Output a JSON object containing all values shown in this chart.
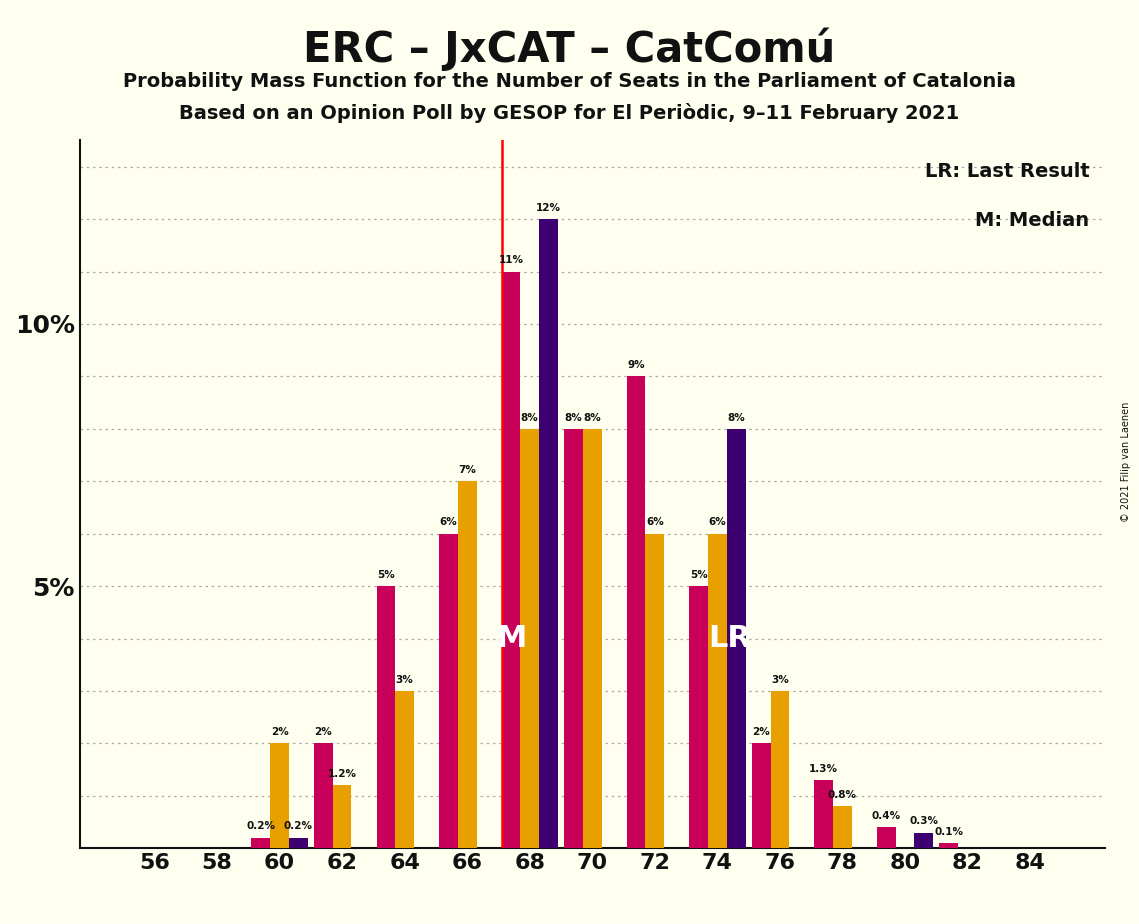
{
  "title": "ERC – JxCAT – CatComú",
  "subtitle1": "Probability Mass Function for the Number of Seats in the Parliament of Catalonia",
  "subtitle2": "Based on an Opinion Poll by GESOP for El Periòdic, 9–11 February 2021",
  "copyright": "© 2021 Filip van Laenen",
  "seats": [
    56,
    58,
    60,
    62,
    64,
    66,
    68,
    70,
    72,
    74,
    76,
    78,
    80,
    82,
    84
  ],
  "erc_color": "#C8005A",
  "jxcat_color": "#E8A000",
  "catcomu_color": "#3D0070",
  "erc_values": [
    0.0,
    0.0,
    0.2,
    2.0,
    5.0,
    6.0,
    11.0,
    8.0,
    9.0,
    5.0,
    2.0,
    1.3,
    0.4,
    0.1,
    0.0
  ],
  "jxcat_values": [
    0.0,
    0.0,
    2.0,
    1.2,
    3.0,
    7.0,
    8.0,
    8.0,
    6.0,
    6.0,
    3.0,
    0.8,
    0.0,
    0.0,
    0.0
  ],
  "catcomu_values": [
    0.0,
    0.0,
    0.2,
    0.0,
    0.0,
    0.0,
    12.0,
    0.0,
    0.0,
    8.0,
    0.0,
    0.0,
    0.3,
    0.0,
    0.0
  ],
  "median_seat": 68,
  "lr_seat": 74,
  "background_color": "#FFFFF0",
  "grid_color": "#AAAAAA",
  "legend_lr": "LR: Last Result",
  "legend_m": "M: Median"
}
